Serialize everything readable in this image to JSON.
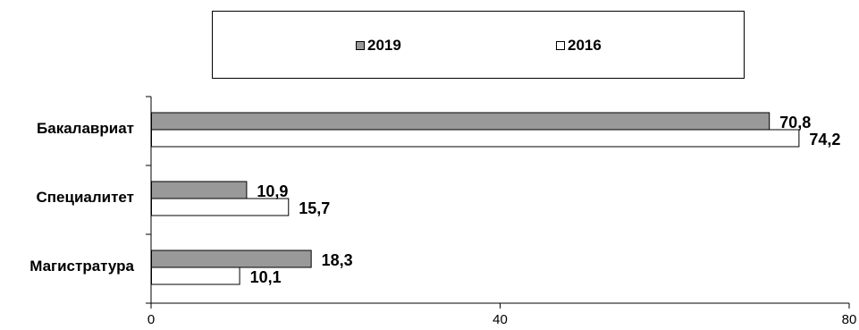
{
  "chart_data": {
    "type": "bar",
    "orientation": "horizontal",
    "categories": [
      "Бакалавриат",
      "Специалитет",
      "Магистратура"
    ],
    "series": [
      {
        "name": "2019",
        "values": [
          70.8,
          10.9,
          18.3
        ],
        "labels": [
          "70,8",
          "10,9",
          "18,3"
        ],
        "color": "#999999"
      },
      {
        "name": "2016",
        "values": [
          74.2,
          15.7,
          10.1
        ],
        "labels": [
          "74,2",
          "15,7",
          "10,1"
        ],
        "color": "#ffffff"
      }
    ],
    "xlim": [
      0,
      80
    ],
    "xticks": [
      "0",
      "40",
      "80"
    ],
    "grid": false,
    "legend": "top"
  }
}
